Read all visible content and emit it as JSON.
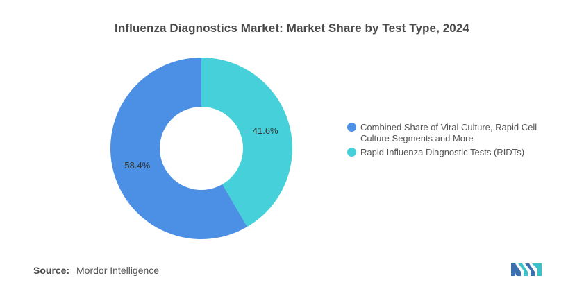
{
  "chart_data": {
    "type": "pie",
    "title": "Influenza Diagnostics Market: Market Share by Test Type, 2024",
    "donut": true,
    "categories": [
      "Rapid Influenza Diagnostic Tests (RIDTs)",
      "Combined Share of Viral Culture, Rapid Cell Culture Segments and More"
    ],
    "values": [
      41.6,
      58.4
    ],
    "unit": "%",
    "value_labels": [
      "41.6%",
      "58.4%"
    ],
    "colors": [
      "#45D0DA",
      "#4B90E4"
    ],
    "legend": {
      "placement": "right",
      "entries": [
        {
          "label": "Combined Share of Viral Culture, Rapid Cell Culture Segments and More",
          "color": "#4B90E4"
        },
        {
          "label": "Rapid Influenza Diagnostic Tests (RIDTs)",
          "color": "#45D0DA"
        }
      ]
    }
  },
  "source": {
    "label": "Source:",
    "text": "Mordor Intelligence"
  },
  "logo": {
    "icon": "mordor-intelligence-logo-icon",
    "colors": [
      "#3A6FB0",
      "#3DC1C9"
    ]
  }
}
